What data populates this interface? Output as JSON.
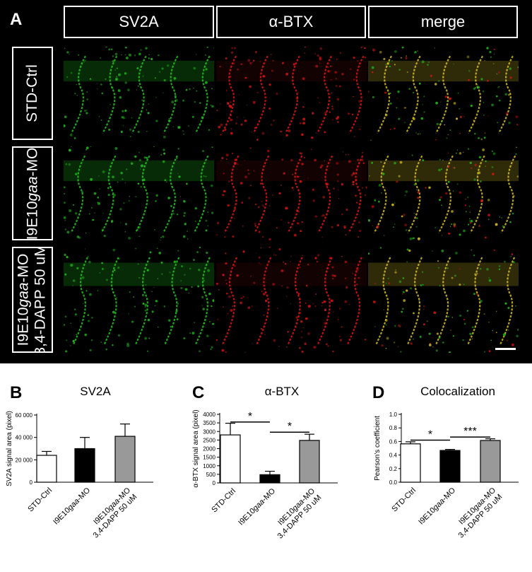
{
  "panel_a": {
    "letter": "A",
    "columns": [
      "SV2A",
      "α-BTX",
      "merge"
    ],
    "rows": [
      {
        "line1": "STD-Ctrl",
        "line2": ""
      },
      {
        "line1_pre": "I9E10",
        "line1_italic": "gaa",
        "line1_post": "-MO",
        "line2": ""
      },
      {
        "line1_pre": "I9E10",
        "line1_italic": "gaa",
        "line1_post": "-MO",
        "line2": "3,4-DAPP 50 uM"
      }
    ],
    "colors": {
      "sv2a": "#22c41e",
      "btx": "#e01414",
      "merge": "#d8c020"
    }
  },
  "chart_data": [
    {
      "letter": "B",
      "type": "bar",
      "title": "SV2A",
      "ylabel": "SV2A signal area (pixel)",
      "categories": [
        "STD-Ctrl",
        "I9E10gaa-MO",
        "I9E10gaa-MO 3,4-DAPP 50 uM"
      ],
      "values": [
        24000,
        30000,
        41000
      ],
      "errors": [
        3500,
        10000,
        11000
      ],
      "ylim": [
        0,
        60000
      ],
      "yticks": [
        "0",
        "20 000",
        "40 000",
        "60 000"
      ],
      "ytick_values": [
        0,
        20000,
        40000,
        60000
      ],
      "fills": [
        "#ffffff",
        "#000000",
        "#999999"
      ],
      "significance": []
    },
    {
      "letter": "C",
      "type": "bar",
      "title": "α-BTX",
      "ylabel": "α-BTX signal area (pixel)",
      "categories": [
        "STD-Ctrl",
        "I9E10gaa-MO",
        "I9E10gaa-MO 3,4-DAPP 50 uM"
      ],
      "values": [
        2800,
        480,
        2480
      ],
      "errors": [
        680,
        200,
        360
      ],
      "ylim": [
        0,
        4000
      ],
      "yticks": [
        "0",
        "500",
        "1000",
        "1500",
        "2000",
        "2500",
        "3000",
        "3500",
        "4000"
      ],
      "ytick_values": [
        0,
        500,
        1000,
        1500,
        2000,
        2500,
        3000,
        3500,
        4000
      ],
      "fills": [
        "#ffffff",
        "#000000",
        "#999999"
      ],
      "significance": [
        {
          "from": 0,
          "to": 1,
          "label": "*",
          "y": 3550
        },
        {
          "from": 1,
          "to": 2,
          "label": "*",
          "y": 2960
        }
      ]
    },
    {
      "letter": "D",
      "type": "bar",
      "title": "Colocalization",
      "ylabel": "Pearson's coefficient",
      "categories": [
        "STD-Ctrl",
        "I9E10gaa-MO",
        "I9E10gaa-MO 3,4-DAPP 50 uM"
      ],
      "values": [
        0.565,
        0.468,
        0.615
      ],
      "errors": [
        0.03,
        0.015,
        0.025
      ],
      "ylim": [
        0,
        1.0
      ],
      "yticks": [
        "0.0",
        "0.2",
        "0.4",
        "0.6",
        "0.8",
        "1.0"
      ],
      "ytick_values": [
        0,
        0.2,
        0.4,
        0.6,
        0.8,
        1.0
      ],
      "fills": [
        "#ffffff",
        "#000000",
        "#999999"
      ],
      "significance": [
        {
          "from": 0,
          "to": 1,
          "label": "*",
          "y": 0.62
        },
        {
          "from": 1,
          "to": 2,
          "label": "***",
          "y": 0.665
        }
      ]
    }
  ]
}
